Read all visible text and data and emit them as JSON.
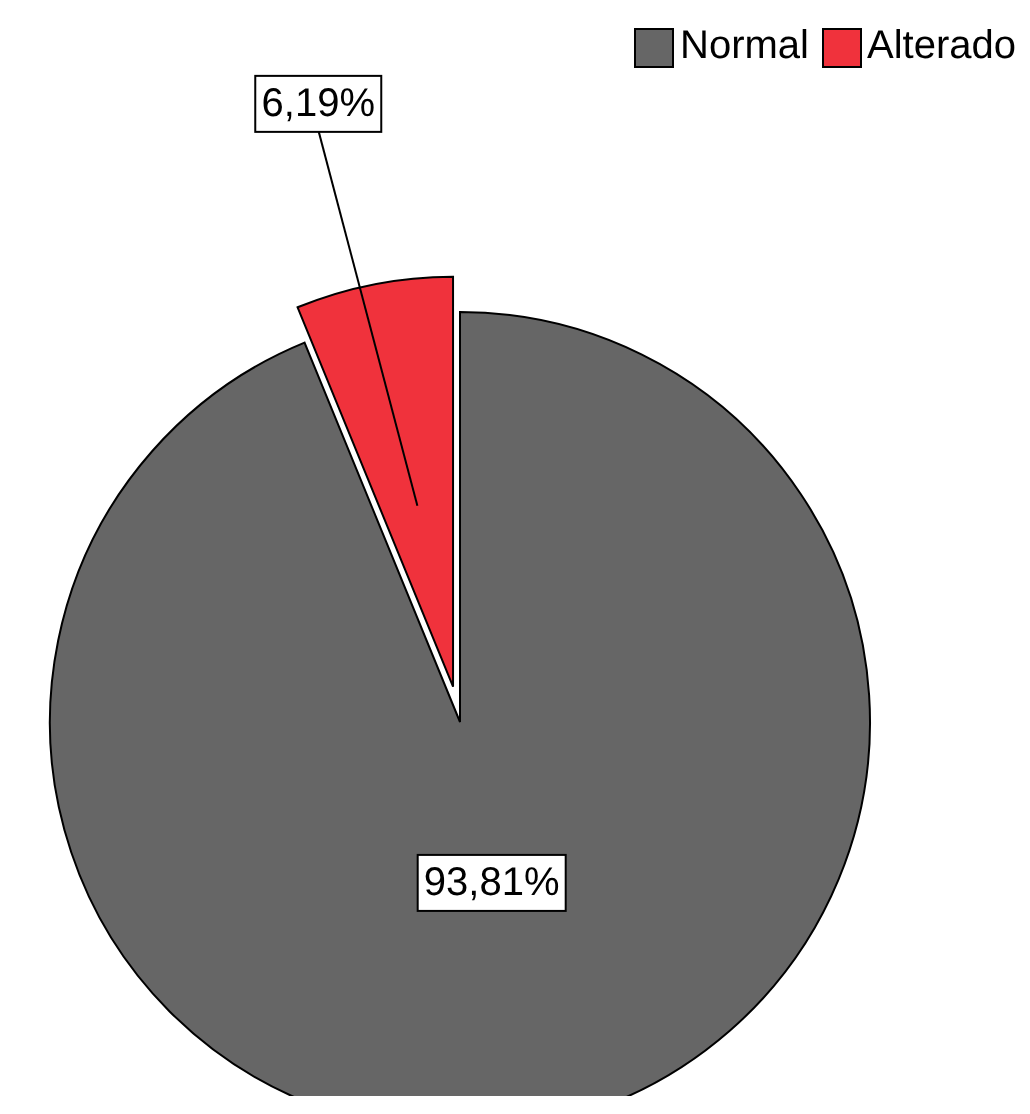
{
  "chart_data": {
    "type": "pie",
    "categories": [
      "Normal",
      "Alterado"
    ],
    "values": [
      93.81,
      6.19
    ],
    "colors": [
      "#666666",
      "#f0323c"
    ],
    "value_labels": [
      "93,81%",
      "6,19%"
    ],
    "legend": "top right"
  }
}
